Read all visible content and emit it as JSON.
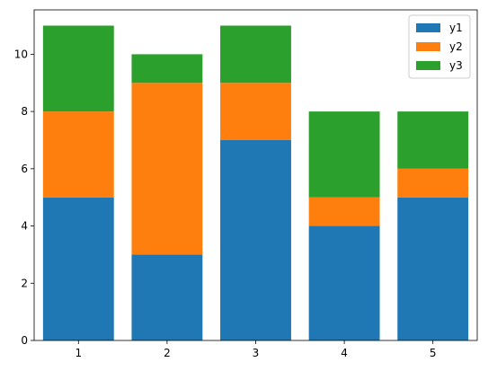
{
  "chart_data": {
    "type": "bar",
    "stacked": true,
    "categories": [
      "1",
      "2",
      "3",
      "4",
      "5"
    ],
    "x": [
      1,
      2,
      3,
      4,
      5
    ],
    "series": [
      {
        "name": "y1",
        "values": [
          5,
          3,
          7,
          4,
          5
        ],
        "color": "#1f77b4"
      },
      {
        "name": "y2",
        "values": [
          3,
          6,
          2,
          1,
          1
        ],
        "color": "#ff7f0e"
      },
      {
        "name": "y3",
        "values": [
          3,
          1,
          2,
          3,
          2
        ],
        "color": "#2ca02c"
      }
    ],
    "title": "",
    "xlabel": "",
    "ylabel": "",
    "xlim": [
      0.5,
      5.5
    ],
    "ylim": [
      0,
      11.55
    ],
    "yticks": [
      0,
      2,
      4,
      6,
      8,
      10
    ],
    "grid": false,
    "legend_position": "top-right"
  }
}
